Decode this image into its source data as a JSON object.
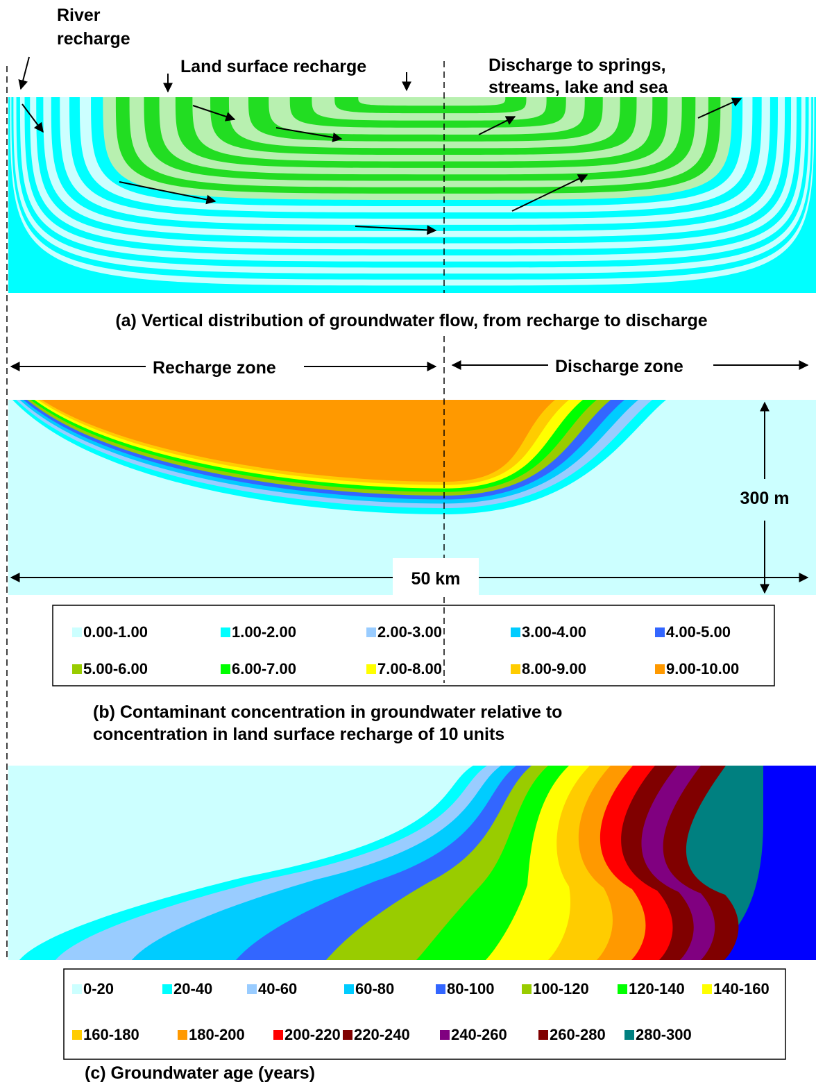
{
  "panel_a": {
    "annotations": {
      "river_recharge_line1": "River",
      "river_recharge_line2": "recharge",
      "land_surface_recharge": "Land surface recharge",
      "discharge_line1": "Discharge to springs,",
      "discharge_line2": "streams, lake and sea"
    },
    "caption": "(a) Vertical distribution of groundwater flow, from recharge to discharge",
    "colors": {
      "green_band": "#22dd22",
      "light_green_band": "#b8f0b0",
      "cyan_band": "#00ffff",
      "light_cyan_band": "#ccffff"
    }
  },
  "panel_b": {
    "zones": {
      "recharge": "Recharge zone",
      "discharge": "Discharge zone"
    },
    "scale": {
      "depth": "300 m",
      "width": "50 km"
    },
    "legend": [
      {
        "label": "0.00-1.00",
        "color": "#ccffff"
      },
      {
        "label": "1.00-2.00",
        "color": "#00ffff"
      },
      {
        "label": "2.00-3.00",
        "color": "#99ccff"
      },
      {
        "label": "3.00-4.00",
        "color": "#00ccff"
      },
      {
        "label": "4.00-5.00",
        "color": "#3366ff"
      },
      {
        "label": "5.00-6.00",
        "color": "#99cc00"
      },
      {
        "label": "6.00-7.00",
        "color": "#00ff00"
      },
      {
        "label": "7.00-8.00",
        "color": "#ffff00"
      },
      {
        "label": "8.00-9.00",
        "color": "#ffcc00"
      },
      {
        "label": "9.00-10.00",
        "color": "#ff9900"
      }
    ],
    "caption_line1": "(b) Contaminant concentration in groundwater relative to",
    "caption_line2": "concentration in land surface recharge of 10 units"
  },
  "panel_c": {
    "legend": [
      {
        "label": "0-20",
        "color": "#ccffff"
      },
      {
        "label": "20-40",
        "color": "#00ffff"
      },
      {
        "label": "40-60",
        "color": "#99ccff"
      },
      {
        "label": "60-80",
        "color": "#00ccff"
      },
      {
        "label": "80-100",
        "color": "#3366ff"
      },
      {
        "label": "100-120",
        "color": "#99cc00"
      },
      {
        "label": "120-140",
        "color": "#00ff00"
      },
      {
        "label": "140-160",
        "color": "#ffff00"
      },
      {
        "label": "160-180",
        "color": "#ffcc00"
      },
      {
        "label": "180-200",
        "color": "#ff9900"
      },
      {
        "label": "200-220",
        "color": "#ff0000"
      },
      {
        "label": "220-240",
        "color": "#800000"
      },
      {
        "label": "240-260",
        "color": "#800080"
      },
      {
        "label": "260-280",
        "color": "#800000"
      },
      {
        "label": "280-300",
        "color": "#008080"
      }
    ],
    "beyond_color": "#0000ff",
    "caption": "(c) Groundwater age (years)"
  }
}
